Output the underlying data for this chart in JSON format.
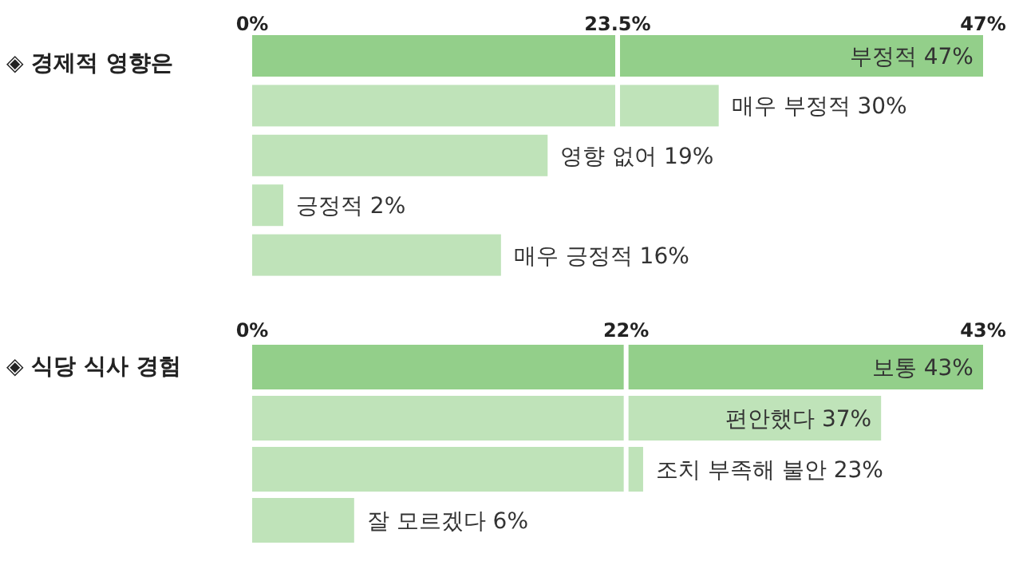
{
  "chart_data": [
    {
      "type": "bar",
      "orientation": "horizontal",
      "title": "◈ 경제적 영향은",
      "categories": [
        "부정적",
        "매우 부정적",
        "영향 없어",
        "긍정적",
        "매우 긍정적"
      ],
      "values": [
        47,
        30,
        19,
        2,
        16
      ],
      "value_labels": [
        "47%",
        "30%",
        "19%",
        "2%",
        "16%"
      ],
      "colors": [
        "#93cf8a",
        "#bfe3b9",
        "#bfe3b9",
        "#bfe3b9",
        "#bfe3b9"
      ],
      "xlim": [
        0,
        47
      ],
      "xticks": [
        {
          "value": 0,
          "label": "0%"
        },
        {
          "value": 23.5,
          "label": "23.5%"
        },
        {
          "value": 47,
          "label": "47%"
        }
      ],
      "grid": "x"
    },
    {
      "type": "bar",
      "orientation": "horizontal",
      "title": "◈ 식당 식사 경험",
      "categories": [
        "보통",
        "편안했다",
        "조치 부족해 불안",
        "잘 모르겠다"
      ],
      "values": [
        43,
        37,
        23,
        6
      ],
      "value_labels": [
        "43%",
        "37%",
        "23%",
        "6%"
      ],
      "colors": [
        "#93cf8a",
        "#bfe3b9",
        "#bfe3b9",
        "#bfe3b9"
      ],
      "xlim": [
        0,
        43
      ],
      "xticks": [
        {
          "value": 0,
          "label": "0%"
        },
        {
          "value": 22,
          "label": "22%"
        },
        {
          "value": 43,
          "label": "43%"
        }
      ],
      "grid": "x"
    }
  ]
}
